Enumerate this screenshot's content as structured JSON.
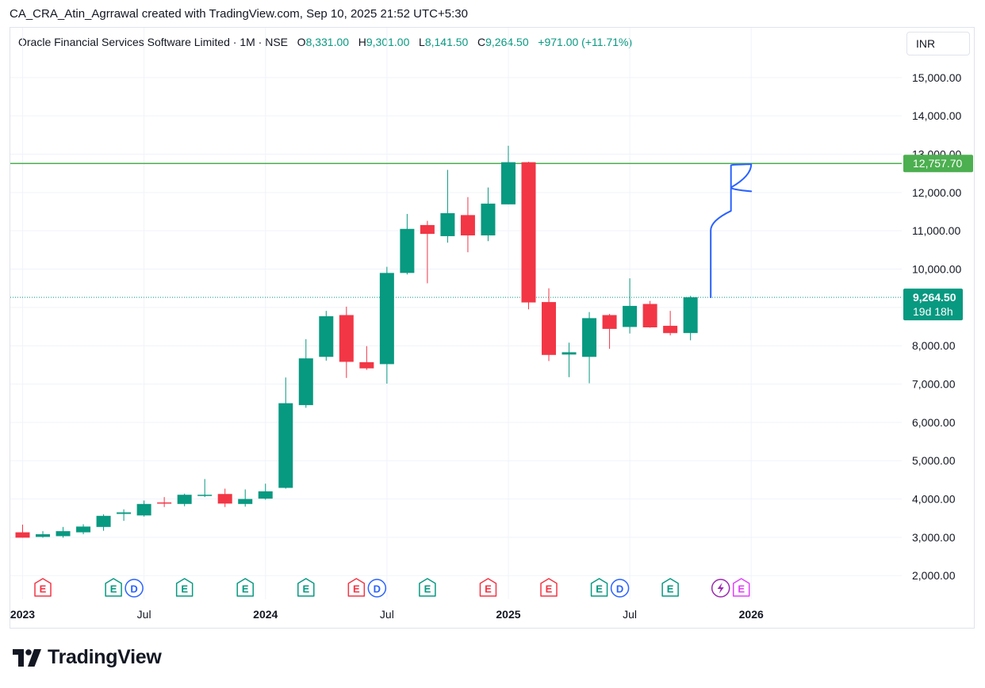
{
  "credit": "CA_CRA_Atin_Agrrawal created with TradingView.com, Sep 10, 2025 21:52 UTC+5:30",
  "legend": {
    "symbol": "Oracle Financial Services Software Limited · 1M · NSE",
    "o_label": "O",
    "o_value": "8,331.00",
    "h_label": "H",
    "h_value": "9,301.00",
    "l_label": "L",
    "l_value": "8,141.50",
    "c_label": "C",
    "c_value": "9,264.50",
    "change": "+971.00 (+11.71%)"
  },
  "currency_button": "INR",
  "price_badge": {
    "price": "9,264.50",
    "countdown": "19d 18h",
    "color": "#089981"
  },
  "level_badge": {
    "price": "12,757.70",
    "color": "#4caf50"
  },
  "brand": "TradingView",
  "colors": {
    "up": "#089981",
    "down": "#f23645",
    "level": "#4caf50",
    "drawing": "#2962ff"
  },
  "chart_data": {
    "type": "candlestick",
    "title": "Oracle Financial Services Software Limited · 1M · NSE",
    "ylim": [
      1600,
      15600
    ],
    "y_ticks": [
      2000,
      3000,
      4000,
      5000,
      6000,
      7000,
      8000,
      9000,
      10000,
      11000,
      12000,
      13000,
      14000,
      15000
    ],
    "y_tick_labels": [
      "2,000.00",
      "3,000.00",
      "4,000.00",
      "5,000.00",
      "6,000.00",
      "7,000.00",
      "8,000.00",
      "9,000.00",
      "10,000.00",
      "11,000.00",
      "12,000.00",
      "13,000.00",
      "14,000.00",
      "15,000.00"
    ],
    "x_labels": [
      {
        "label": "2023",
        "month": "2023-01",
        "bold": true
      },
      {
        "label": "Jul",
        "month": "2023-07",
        "bold": false
      },
      {
        "label": "2024",
        "month": "2024-01",
        "bold": true
      },
      {
        "label": "Jul",
        "month": "2024-07",
        "bold": false
      },
      {
        "label": "2025",
        "month": "2025-01",
        "bold": true
      },
      {
        "label": "Jul",
        "month": "2025-07",
        "bold": false
      },
      {
        "label": "2026",
        "month": "2026-01",
        "bold": true
      }
    ],
    "candles": [
      {
        "month": "2023-01",
        "o": 3130,
        "h": 3330,
        "l": 2990,
        "c": 2990
      },
      {
        "month": "2023-02",
        "o": 3010,
        "h": 3160,
        "l": 2990,
        "c": 3080
      },
      {
        "month": "2023-03",
        "o": 3030,
        "h": 3270,
        "l": 2990,
        "c": 3160
      },
      {
        "month": "2023-04",
        "o": 3130,
        "h": 3340,
        "l": 3080,
        "c": 3280
      },
      {
        "month": "2023-05",
        "o": 3270,
        "h": 3600,
        "l": 3170,
        "c": 3560
      },
      {
        "month": "2023-06",
        "o": 3610,
        "h": 3730,
        "l": 3430,
        "c": 3650
      },
      {
        "month": "2023-07",
        "o": 3570,
        "h": 3960,
        "l": 3540,
        "c": 3870
      },
      {
        "month": "2023-08",
        "o": 3910,
        "h": 4050,
        "l": 3790,
        "c": 3880
      },
      {
        "month": "2023-09",
        "o": 3870,
        "h": 4140,
        "l": 3810,
        "c": 4110
      },
      {
        "month": "2023-10",
        "o": 4090,
        "h": 4520,
        "l": 4050,
        "c": 4110
      },
      {
        "month": "2023-11",
        "o": 4130,
        "h": 4270,
        "l": 3790,
        "c": 3880
      },
      {
        "month": "2023-12",
        "o": 3870,
        "h": 4250,
        "l": 3800,
        "c": 4000
      },
      {
        "month": "2024-01",
        "o": 4010,
        "h": 4400,
        "l": 3980,
        "c": 4200
      },
      {
        "month": "2024-02",
        "o": 4290,
        "h": 7170,
        "l": 4270,
        "c": 6500
      },
      {
        "month": "2024-03",
        "o": 6450,
        "h": 8170,
        "l": 6380,
        "c": 7670
      },
      {
        "month": "2024-04",
        "o": 7710,
        "h": 8910,
        "l": 7610,
        "c": 8770
      },
      {
        "month": "2024-05",
        "o": 8800,
        "h": 9020,
        "l": 7160,
        "c": 7580
      },
      {
        "month": "2024-06",
        "o": 7570,
        "h": 7990,
        "l": 7370,
        "c": 7410
      },
      {
        "month": "2024-07",
        "o": 7520,
        "h": 10060,
        "l": 7010,
        "c": 9900
      },
      {
        "month": "2024-08",
        "o": 9900,
        "h": 11440,
        "l": 9860,
        "c": 11050
      },
      {
        "month": "2024-09",
        "o": 11150,
        "h": 11260,
        "l": 9630,
        "c": 10920
      },
      {
        "month": "2024-10",
        "o": 10860,
        "h": 12590,
        "l": 10690,
        "c": 11460
      },
      {
        "month": "2024-11",
        "o": 11410,
        "h": 11880,
        "l": 10440,
        "c": 10880
      },
      {
        "month": "2024-12",
        "o": 10880,
        "h": 12130,
        "l": 10730,
        "c": 11710
      },
      {
        "month": "2025-01",
        "o": 11690,
        "h": 13220,
        "l": 11690,
        "c": 12790
      },
      {
        "month": "2025-02",
        "o": 12790,
        "h": 12800,
        "l": 8950,
        "c": 9130
      },
      {
        "month": "2025-03",
        "o": 9140,
        "h": 9500,
        "l": 7600,
        "c": 7760
      },
      {
        "month": "2025-04",
        "o": 7770,
        "h": 8080,
        "l": 7180,
        "c": 7830
      },
      {
        "month": "2025-05",
        "o": 7710,
        "h": 8880,
        "l": 7020,
        "c": 8720
      },
      {
        "month": "2025-06",
        "o": 8800,
        "h": 8830,
        "l": 7920,
        "c": 8440
      },
      {
        "month": "2025-07",
        "o": 8490,
        "h": 9760,
        "l": 8320,
        "c": 9040
      },
      {
        "month": "2025-08",
        "o": 9090,
        "h": 9170,
        "l": 8470,
        "c": 8480
      },
      {
        "month": "2025-09",
        "o": 8520,
        "h": 8910,
        "l": 8270,
        "c": 8330
      },
      {
        "month": "2025-10",
        "o": 8331,
        "h": 9301,
        "l": 8141.5,
        "c": 9264.5
      }
    ],
    "horizontal_level": 12757.7,
    "last_price": 9264.5,
    "events": [
      {
        "month": "2023-02",
        "types": [
          "E"
        ],
        "color": "red"
      },
      {
        "month": "2023-06",
        "types": [
          "E",
          "D"
        ],
        "color": "green"
      },
      {
        "month": "2023-09",
        "types": [
          "E"
        ],
        "color": "green"
      },
      {
        "month": "2023-12",
        "types": [
          "E"
        ],
        "color": "green"
      },
      {
        "month": "2024-03",
        "types": [
          "E"
        ],
        "color": "green"
      },
      {
        "month": "2024-06",
        "types": [
          "E",
          "D"
        ],
        "color": "red"
      },
      {
        "month": "2024-09",
        "types": [
          "E"
        ],
        "color": "green"
      },
      {
        "month": "2024-12",
        "types": [
          "E"
        ],
        "color": "red"
      },
      {
        "month": "2025-03",
        "types": [
          "E"
        ],
        "color": "red"
      },
      {
        "month": "2025-06",
        "types": [
          "E",
          "D"
        ],
        "color": "green"
      },
      {
        "month": "2025-09",
        "types": [
          "E"
        ],
        "color": "green"
      },
      {
        "month": "2025-12",
        "types": [
          "flash",
          "E"
        ],
        "color": "purple"
      }
    ],
    "drawing": {
      "type": "freehand",
      "path_values": [
        [
          "2025-11",
          9264
        ],
        [
          "2025-11",
          11010
        ],
        [
          "2025-12",
          11520
        ],
        [
          "2025-12",
          12100
        ],
        [
          "2025-12",
          12710
        ],
        [
          "2026-01",
          12740
        ],
        [
          "2025-12",
          12130
        ],
        [
          "2026-01",
          12030
        ]
      ]
    }
  }
}
